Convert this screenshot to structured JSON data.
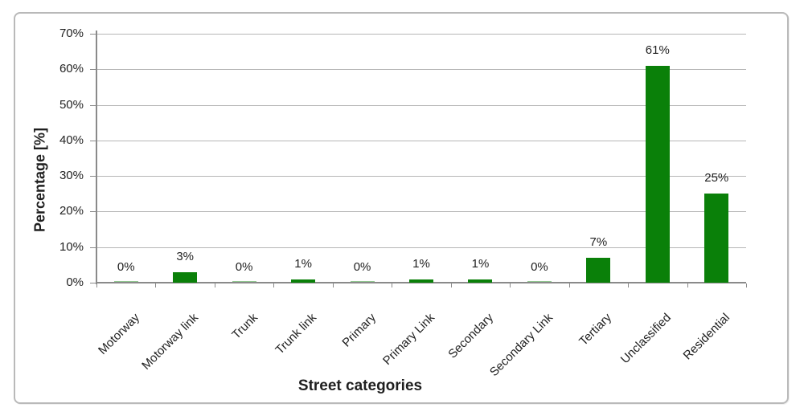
{
  "chart_data": {
    "type": "bar",
    "categories": [
      "Motorway",
      "Motorway link",
      "Trunk",
      "Trunk link",
      "Primary",
      "Primary Link",
      "Secondary",
      "Secondary Link",
      "Tertiary",
      "Unclassified",
      "Residential"
    ],
    "values": [
      0,
      3,
      0,
      1,
      0,
      1,
      1,
      0,
      7,
      61,
      25
    ],
    "value_labels": [
      "0%",
      "3%",
      "0%",
      "1%",
      "0%",
      "1%",
      "1%",
      "0%",
      "7%",
      "61%",
      "25%"
    ],
    "title": "",
    "xlabel": "Street categories",
    "ylabel": "Percentage [%]",
    "ylim": [
      0,
      70
    ],
    "ytick_step": 10,
    "ytick_labels": [
      "0%",
      "10%",
      "20%",
      "30%",
      "40%",
      "50%",
      "60%",
      "70%"
    ],
    "grid": true,
    "legend": "none",
    "colors": {
      "bar": "#0a8009",
      "gridline": "#b6b6b6",
      "axis": "#8a8a8a",
      "frame_border": "#b9b9b9",
      "text": "#1f1f1f"
    }
  }
}
